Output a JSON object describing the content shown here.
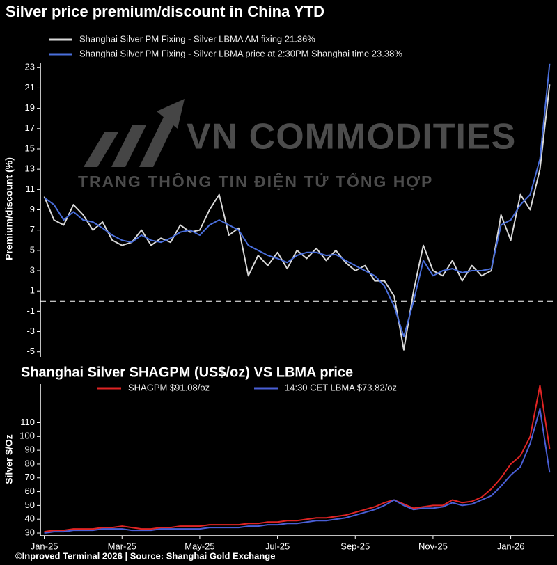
{
  "watermark": {
    "brand": "VN COMMODITIES",
    "tagline": "TRANG THÔNG TIN ĐIỆN TỬ TỔNG HỢP"
  },
  "footer": "©Inproved Terminal 2026 | Source: Shanghai Gold Exchange",
  "chart_data": [
    {
      "type": "line",
      "title": "Silver price premium/discount in China YTD",
      "y_label": "Premium/discount (%)",
      "x": [
        0,
        0.25,
        0.5,
        0.75,
        1,
        1.25,
        1.5,
        1.75,
        2,
        2.25,
        2.5,
        2.75,
        3,
        3.25,
        3.5,
        3.75,
        4,
        4.25,
        4.5,
        4.75,
        5,
        5.25,
        5.5,
        5.75,
        6,
        6.25,
        6.5,
        6.75,
        7,
        7.25,
        7.5,
        7.75,
        8,
        8.25,
        8.5,
        8.75,
        9,
        9.25,
        9.5,
        9.75,
        10,
        10.25,
        10.5,
        10.75,
        11,
        11.25,
        11.5,
        11.75,
        12,
        12.25,
        12.5,
        12.75,
        13
      ],
      "xlim": [
        -0.1,
        13.1
      ],
      "ylim": [
        -5.5,
        23.5
      ],
      "yticks": [
        23,
        21,
        19,
        17,
        15,
        13,
        11,
        9,
        7,
        5,
        3,
        1,
        -1,
        -3,
        -5
      ],
      "hline": 0,
      "series": [
        {
          "name": "Shanghai Silver PM Fixing - Silver LBMA AM fixing 21.36%",
          "color": "#d9d9d9",
          "values": [
            10.3,
            8.0,
            7.5,
            9.5,
            8.5,
            7.0,
            7.8,
            6.0,
            5.5,
            5.8,
            7.0,
            5.5,
            6.2,
            5.8,
            7.5,
            6.8,
            7.0,
            9.0,
            10.5,
            6.5,
            7.2,
            2.5,
            4.5,
            3.5,
            4.8,
            3.2,
            5.0,
            4.2,
            5.2,
            4.0,
            5.0,
            3.8,
            3.0,
            3.5,
            2.0,
            2.0,
            0.5,
            -4.8,
            1.0,
            5.5,
            3.0,
            2.5,
            4.0,
            2.0,
            3.5,
            2.5,
            3.0,
            8.5,
            6.0,
            10.5,
            9.0,
            13.0,
            21.36
          ]
        },
        {
          "name": "Shanghai Silver PM Fixing - Silver LBMA price at 2:30PM Shanghai time 23.38%",
          "color": "#4a6fdc",
          "values": [
            10.2,
            9.5,
            8.0,
            8.8,
            8.0,
            7.8,
            7.2,
            6.5,
            6.0,
            5.8,
            6.5,
            6.0,
            5.8,
            6.2,
            6.8,
            7.0,
            6.5,
            7.5,
            8.0,
            7.5,
            7.0,
            5.5,
            5.0,
            4.5,
            4.2,
            3.8,
            4.5,
            4.8,
            4.8,
            4.5,
            4.6,
            4.0,
            3.5,
            3.0,
            2.5,
            1.5,
            -0.5,
            -3.5,
            0.0,
            4.0,
            2.5,
            3.0,
            3.2,
            2.8,
            3.0,
            3.0,
            3.2,
            7.5,
            8.0,
            9.5,
            10.5,
            14.0,
            23.38
          ]
        }
      ]
    },
    {
      "type": "line",
      "title": "Shanghai Silver SHAGPM (US$/oz) VS LBMA price",
      "y_label": "Silver $/Oz",
      "x": [
        0,
        0.25,
        0.5,
        0.75,
        1,
        1.25,
        1.5,
        1.75,
        2,
        2.25,
        2.5,
        2.75,
        3,
        3.25,
        3.5,
        3.75,
        4,
        4.25,
        4.5,
        4.75,
        5,
        5.25,
        5.5,
        5.75,
        6,
        6.25,
        6.5,
        6.75,
        7,
        7.25,
        7.5,
        7.75,
        8,
        8.25,
        8.5,
        8.75,
        9,
        9.25,
        9.5,
        9.75,
        10,
        10.25,
        10.5,
        10.75,
        11,
        11.25,
        11.5,
        11.75,
        12,
        12.25,
        12.5,
        12.75,
        13
      ],
      "xlim": [
        -0.1,
        13.1
      ],
      "ylim": [
        28,
        138
      ],
      "xticks": [
        {
          "value": 0,
          "label": "Jan-25"
        },
        {
          "value": 2,
          "label": "Mar-25"
        },
        {
          "value": 4,
          "label": "May-25"
        },
        {
          "value": 6,
          "label": "Jul-25"
        },
        {
          "value": 8,
          "label": "Sep-25"
        },
        {
          "value": 10,
          "label": "Nov-25"
        },
        {
          "value": 12,
          "label": "Jan-26"
        }
      ],
      "yticks": [
        30,
        40,
        50,
        60,
        70,
        80,
        90,
        100,
        110
      ],
      "series": [
        {
          "name": "SHAGPM $91.08/oz",
          "color": "#e02424",
          "values": [
            31,
            32,
            32,
            33,
            33,
            33,
            34,
            34,
            35,
            34,
            33,
            33,
            34,
            34,
            35,
            35,
            35,
            36,
            36,
            36,
            36,
            37,
            37,
            38,
            38,
            39,
            39,
            40,
            41,
            41,
            42,
            43,
            45,
            47,
            49,
            52,
            54,
            51,
            48,
            49,
            50,
            50,
            54,
            52,
            53,
            56,
            62,
            70,
            80,
            86,
            100,
            137,
            91.08
          ]
        },
        {
          "name": "14:30 CET LBMA $73.82/oz",
          "color": "#4a5fd6",
          "values": [
            30,
            31,
            31,
            32,
            32,
            32,
            33,
            33,
            33,
            32,
            32,
            32,
            33,
            33,
            33,
            33,
            33,
            34,
            34,
            34,
            34,
            35,
            35,
            36,
            36,
            37,
            37,
            38,
            39,
            39,
            40,
            41,
            43,
            45,
            47,
            50,
            54,
            50,
            47,
            48,
            48,
            49,
            52,
            50,
            51,
            54,
            57,
            64,
            72,
            78,
            95,
            120,
            73.82
          ]
        }
      ]
    }
  ]
}
